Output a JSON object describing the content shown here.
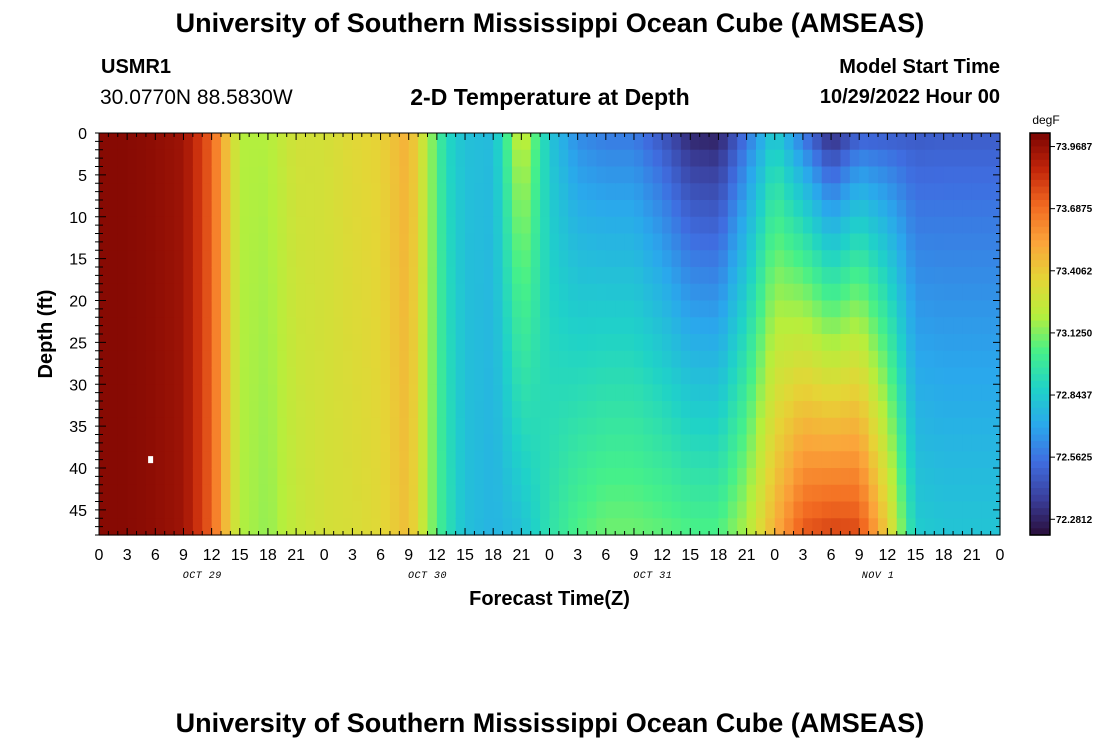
{
  "header": {
    "title": "University of Southern Mississippi Ocean Cube (AMSEAS)",
    "station": "USMR1",
    "coords": "30.0770N  88.5830W",
    "subtitle": "2-D Temperature at Depth",
    "model_start_label": "Model Start Time",
    "model_start_value": "10/29/2022 Hour 00"
  },
  "footer": {
    "title": "University of Southern Mississippi Ocean Cube (AMSEAS)"
  },
  "colors": {
    "palette": [
      "#2a0d3a",
      "#3a3f9c",
      "#3f6de0",
      "#2aa8ec",
      "#1fd2c8",
      "#45f08a",
      "#b6ef3c",
      "#e5d536",
      "#fba43a",
      "#f26a21",
      "#c2250a",
      "#7a0402"
    ]
  },
  "chart_data": {
    "type": "heatmap",
    "xlabel": "Forecast Time(Z)",
    "ylabel": "Depth (ft)",
    "colorbar_unit": "degF",
    "colorbar_ticks": [
      "73.9687",
      "73.6875",
      "73.4062",
      "73.1250",
      "72.8437",
      "72.5625",
      "72.2812"
    ],
    "colorbar_values": [
      73.9687,
      73.6875,
      73.4062,
      73.125,
      72.8437,
      72.5625,
      72.2812
    ],
    "clim": [
      72.21,
      74.03
    ],
    "x_range_hours": [
      0,
      96
    ],
    "x_tick_labels": [
      "0",
      "3",
      "6",
      "9",
      "12",
      "15",
      "18",
      "21",
      "0",
      "3",
      "6",
      "9",
      "12",
      "15",
      "18",
      "21",
      "0",
      "3",
      "6",
      "9",
      "12",
      "15",
      "18",
      "21",
      "0",
      "3",
      "6",
      "9",
      "12",
      "15",
      "18",
      "21",
      "0"
    ],
    "day_labels": [
      {
        "hour": 11,
        "label": "OCT 29"
      },
      {
        "hour": 35,
        "label": "OCT 30"
      },
      {
        "hour": 59,
        "label": "OCT 31"
      },
      {
        "hour": 83,
        "label": "NOV 1"
      }
    ],
    "y_range_ft": [
      0,
      48
    ],
    "y_ticks": [
      0,
      5,
      10,
      15,
      20,
      25,
      30,
      35,
      40,
      45
    ],
    "surface_profile_hours": [
      0,
      3,
      6,
      9,
      12,
      15,
      18,
      21,
      24,
      27,
      30,
      33,
      36,
      37,
      39,
      42,
      45,
      48,
      51,
      54,
      57,
      60,
      63,
      66,
      69,
      72,
      75,
      78,
      81,
      84,
      87,
      90,
      93,
      96
    ],
    "surface_profile_degF": [
      74.0,
      74.0,
      73.98,
      73.95,
      73.72,
      73.2,
      73.2,
      73.3,
      73.3,
      73.35,
      73.38,
      73.5,
      73.05,
      72.9,
      72.8,
      72.78,
      73.3,
      72.82,
      72.62,
      72.57,
      72.57,
      72.45,
      72.28,
      72.26,
      72.55,
      72.84,
      72.55,
      72.27,
      72.47,
      72.47,
      72.47,
      72.48,
      72.48,
      72.48
    ],
    "bottom_profile_hours": [
      0,
      3,
      6,
      9,
      12,
      15,
      18,
      21,
      24,
      27,
      30,
      33,
      36,
      37,
      39,
      42,
      45,
      48,
      51,
      54,
      57,
      60,
      63,
      66,
      69,
      72,
      75,
      78,
      81,
      84,
      87,
      90,
      93,
      96
    ],
    "bottom_profile_degF": [
      74.0,
      74.0,
      73.98,
      73.95,
      73.72,
      73.2,
      73.15,
      73.25,
      73.3,
      73.32,
      73.35,
      73.45,
      73.05,
      72.95,
      72.8,
      72.75,
      72.8,
      72.95,
      73.05,
      73.1,
      73.1,
      73.08,
      73.05,
      73.05,
      73.2,
      73.5,
      73.75,
      73.8,
      73.78,
      73.4,
      72.85,
      72.82,
      72.82,
      72.82
    ],
    "special_marks": [
      {
        "hour": 5.5,
        "depth_ft": 39,
        "value": "missing"
      }
    ]
  }
}
